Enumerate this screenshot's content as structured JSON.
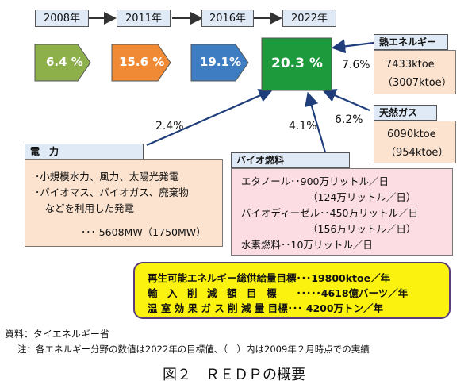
{
  "timeline": {
    "years": [
      "2008年",
      "2011年",
      "2016年",
      "2022年"
    ],
    "shares": [
      "6.4 %",
      "15.6 %",
      "19.1%",
      "20.3 %"
    ],
    "colors": [
      "#8db04a",
      "#f08a35",
      "#3f7dc2",
      "#1c9a3c"
    ]
  },
  "heat": {
    "title": "熱エネルギー",
    "value": "7433ktoe",
    "actual": "（3007ktoe）",
    "percent": "7.6%"
  },
  "gas": {
    "title": "天然ガス",
    "value": "6090ktoe",
    "actual": "（954ktoe）",
    "percent": "6.2%"
  },
  "power": {
    "title": "電　力",
    "percent": "2.4%",
    "lines": [
      "･小規模水力、風力、太陽光発電",
      "･バイオマス、バイオガス、廃棄物",
      "　などを利用した発電"
    ],
    "total": "･･･ 5608MW（1750MW）"
  },
  "bio": {
    "title": "バイオ燃料",
    "percent": "4.1%",
    "lines": [
      "エタノール･･900万リットル／日",
      "（124万リットル／日）",
      "バイオディーゼル･･450万リットル／日",
      "（156万リットル／日）",
      "水素燃料･･10万リットル／日"
    ]
  },
  "targets": [
    "再生可能エネルギー総供給量目標･･･19800ktoe／年",
    "輸　入　削　減　額　目　標　　･････4618億バーツ／年",
    "温 室 効 果 ガ ス 削 減 量 目標･･･ 4200万トン／年"
  ],
  "source": "資料：タイエネルギー省",
  "note": "注：各エネルギー分野の数値は2022年の目標値、（　）内は2009年２月時点での実績",
  "caption": "図２　ＲＥＤＰの概要"
}
